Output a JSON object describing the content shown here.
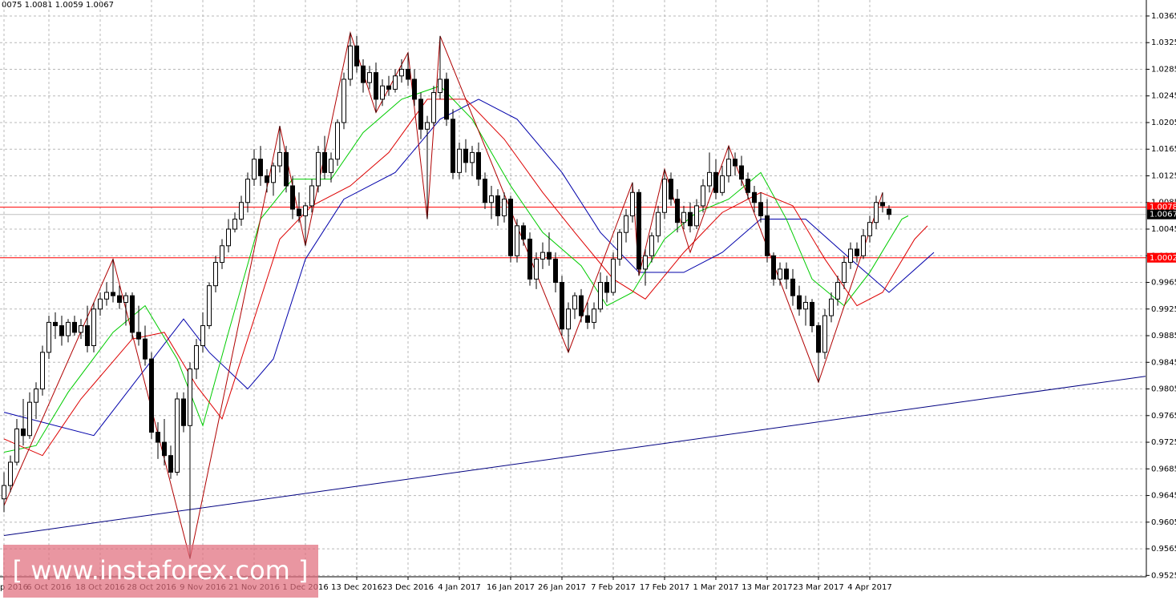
{
  "chart_data": {
    "type": "candlestick",
    "header_text": "0075 1.0081 1.0059 1.0067",
    "watermark": "[ www.instaforex.com ]",
    "ylim": [
      0.9523,
      1.0389
    ],
    "yticks": [
      1.0365,
      1.0325,
      1.0285,
      1.0245,
      1.0205,
      1.0165,
      1.0125,
      1.0085,
      1.0045,
      1.0005,
      0.9965,
      0.9925,
      0.9885,
      0.9845,
      0.9805,
      0.9765,
      0.9725,
      0.9685,
      0.9645,
      0.9605,
      0.9565,
      0.9525
    ],
    "grid": true,
    "up_color": "#ffffff",
    "down_color": "#000000",
    "categories": [
      "p 2016",
      null,
      null,
      null,
      null,
      null,
      null,
      "6 Oct 2016",
      null,
      null,
      null,
      null,
      null,
      null,
      null,
      "18 Oct 2016",
      null,
      null,
      null,
      null,
      null,
      null,
      null,
      "28 Oct 2016",
      null,
      null,
      null,
      null,
      null,
      null,
      null,
      "9 Nov 2016",
      null,
      null,
      null,
      null,
      null,
      null,
      null,
      "21 Nov 2016",
      null,
      null,
      null,
      null,
      null,
      null,
      null,
      "1 Dec 2016",
      null,
      null,
      null,
      null,
      null,
      null,
      null,
      "13 Dec 2016",
      null,
      null,
      null,
      null,
      null,
      null,
      null,
      "23 Dec 2016",
      null,
      null,
      null,
      null,
      null,
      null,
      null,
      "4 Jan 2017",
      null,
      null,
      null,
      null,
      null,
      null,
      null,
      "16 Jan 2017",
      null,
      null,
      null,
      null,
      null,
      null,
      null,
      "26 Jan 2017",
      null,
      null,
      null,
      null,
      null,
      null,
      null,
      "7 Feb 2017",
      null,
      null,
      null,
      null,
      null,
      null,
      null,
      "17 Feb 2017",
      null,
      null,
      null,
      null,
      null,
      null,
      null,
      "1 Mar 2017",
      null,
      null,
      null,
      null,
      null,
      null,
      null,
      "13 Mar 2017",
      null,
      null,
      null,
      null,
      null,
      null,
      null,
      "23 Mar 2017",
      null,
      null,
      null,
      null,
      null,
      null,
      null,
      "4 Apr 2017",
      null,
      null,
      null
    ],
    "ohlc": [
      [
        0.964,
        0.968,
        0.962,
        0.966
      ],
      [
        0.966,
        0.9705,
        0.965,
        0.9695
      ],
      [
        0.9695,
        0.976,
        0.969,
        0.9745
      ],
      [
        0.9745,
        0.979,
        0.972,
        0.9735
      ],
      [
        0.9735,
        0.98,
        0.973,
        0.9785
      ],
      [
        0.9785,
        0.9815,
        0.976,
        0.9805
      ],
      [
        0.9805,
        0.987,
        0.9795,
        0.986
      ],
      [
        0.986,
        0.9915,
        0.985,
        0.9905
      ],
      [
        0.9905,
        0.992,
        0.988,
        0.99
      ],
      [
        0.99,
        0.9915,
        0.987,
        0.9885
      ],
      [
        0.9885,
        0.991,
        0.9875,
        0.9905
      ],
      [
        0.9905,
        0.9915,
        0.9885,
        0.989
      ],
      [
        0.989,
        0.991,
        0.988,
        0.99
      ],
      [
        0.99,
        0.993,
        0.986,
        0.987
      ],
      [
        0.987,
        0.9935,
        0.986,
        0.9925
      ],
      [
        0.9925,
        0.995,
        0.9915,
        0.994
      ],
      [
        0.994,
        0.9965,
        0.993,
        0.995
      ],
      [
        0.995,
        1.0,
        0.9935,
        0.9945
      ],
      [
        0.9945,
        0.996,
        0.9925,
        0.9935
      ],
      [
        0.9935,
        0.995,
        0.99,
        0.9945
      ],
      [
        0.9945,
        0.995,
        0.988,
        0.989
      ],
      [
        0.989,
        0.993,
        0.987,
        0.988
      ],
      [
        0.988,
        0.99,
        0.984,
        0.985
      ],
      [
        0.985,
        0.986,
        0.973,
        0.974
      ],
      [
        0.974,
        0.9755,
        0.97,
        0.9725
      ],
      [
        0.9725,
        0.976,
        0.969,
        0.9705
      ],
      [
        0.9705,
        0.972,
        0.967,
        0.968
      ],
      [
        0.968,
        0.98,
        0.9675,
        0.979
      ],
      [
        0.979,
        0.98,
        0.974,
        0.975
      ],
      [
        0.975,
        0.9845,
        0.955,
        0.9835
      ],
      [
        0.9835,
        0.988,
        0.982,
        0.987
      ],
      [
        0.987,
        0.992,
        0.986,
        0.99
      ],
      [
        0.99,
        0.9965,
        0.9895,
        0.996
      ],
      [
        0.996,
        1.0005,
        0.995,
        0.9995
      ],
      [
        0.9995,
        1.003,
        0.9985,
        1.002
      ],
      [
        1.002,
        1.006,
        1.001,
        1.0045
      ],
      [
        1.0045,
        1.007,
        1.004,
        1.006
      ],
      [
        1.006,
        1.0095,
        1.005,
        1.0085
      ],
      [
        1.0085,
        1.013,
        1.007,
        1.012
      ],
      [
        1.012,
        1.0165,
        1.011,
        1.015
      ],
      [
        1.015,
        1.017,
        1.011,
        1.0125
      ],
      [
        1.0125,
        1.0135,
        1.01,
        1.0115
      ],
      [
        1.0115,
        1.0145,
        1.0095,
        1.014
      ],
      [
        1.014,
        1.02,
        1.013,
        1.016
      ],
      [
        1.016,
        1.017,
        1.01,
        1.011
      ],
      [
        1.011,
        1.0125,
        1.006,
        1.0075
      ],
      [
        1.0075,
        1.01,
        1.0055,
        1.0065
      ],
      [
        1.0065,
        1.0085,
        1.002,
        1.008
      ],
      [
        1.008,
        1.012,
        1.007,
        1.011
      ],
      [
        1.011,
        1.017,
        1.01,
        1.016
      ],
      [
        1.016,
        1.0185,
        1.012,
        1.013
      ],
      [
        1.013,
        1.016,
        1.0115,
        1.015
      ],
      [
        1.015,
        1.021,
        1.014,
        1.0205
      ],
      [
        1.0205,
        1.028,
        1.0195,
        1.027
      ],
      [
        1.027,
        1.034,
        1.026,
        1.032
      ],
      [
        1.032,
        1.0335,
        1.028,
        1.029
      ],
      [
        1.029,
        1.03,
        1.025,
        1.0265
      ],
      [
        1.0265,
        1.029,
        1.0255,
        1.028
      ],
      [
        1.028,
        1.0295,
        1.022,
        1.024
      ],
      [
        1.024,
        1.027,
        1.023,
        1.026
      ],
      [
        1.026,
        1.0275,
        1.0245,
        1.0255
      ],
      [
        1.0255,
        1.0285,
        1.025,
        1.0275
      ],
      [
        1.0275,
        1.03,
        1.0265,
        1.0285
      ],
      [
        1.0285,
        1.031,
        1.026,
        1.027
      ],
      [
        1.027,
        1.0285,
        1.023,
        1.024
      ],
      [
        1.024,
        1.025,
        1.018,
        1.0195
      ],
      [
        1.0195,
        1.0215,
        1.006,
        1.0205
      ],
      [
        1.0205,
        1.026,
        1.02,
        1.025
      ],
      [
        1.025,
        1.0335,
        1.024,
        1.027
      ],
      [
        1.027,
        1.028,
        1.02,
        1.021
      ],
      [
        1.021,
        1.0225,
        1.012,
        1.013
      ],
      [
        1.013,
        1.0175,
        1.012,
        1.0165
      ],
      [
        1.0165,
        1.018,
        1.013,
        1.0145
      ],
      [
        1.0145,
        1.017,
        1.0125,
        1.016
      ],
      [
        1.016,
        1.0175,
        1.011,
        1.012
      ],
      [
        1.012,
        1.013,
        1.0075,
        1.0085
      ],
      [
        1.0085,
        1.011,
        1.006,
        1.0095
      ],
      [
        1.0095,
        1.0105,
        1.005,
        1.0065
      ],
      [
        1.0065,
        1.01,
        1.0055,
        1.009
      ],
      [
        1.009,
        1.0095,
        0.9995,
        1.0005
      ],
      [
        1.0005,
        1.006,
        0.9995,
        1.005
      ],
      [
        1.005,
        1.0055,
        1.002,
        1.003
      ],
      [
        1.003,
        1.004,
        0.996,
        0.997
      ],
      [
        0.997,
        1.001,
        0.9955,
        1.0
      ],
      [
        1.0,
        1.0025,
        0.9985,
        1.001
      ],
      [
        1.001,
        1.004,
        0.999,
        1.0
      ],
      [
        1.0,
        1.001,
        0.995,
        0.9965
      ],
      [
        0.9965,
        0.9975,
        0.9885,
        0.9895
      ],
      [
        0.9895,
        0.9935,
        0.986,
        0.9925
      ],
      [
        0.9925,
        0.995,
        0.991,
        0.9945
      ],
      [
        0.9945,
        0.9955,
        0.9905,
        0.9915
      ],
      [
        0.9915,
        0.9935,
        0.9895,
        0.9905
      ],
      [
        0.9905,
        0.9935,
        0.9895,
        0.9925
      ],
      [
        0.9925,
        0.998,
        0.992,
        0.9965
      ],
      [
        0.9965,
        0.9975,
        0.9935,
        0.995
      ],
      [
        0.995,
        1.001,
        0.9945,
        1.0
      ],
      [
        1.0,
        1.0045,
        0.999,
        1.004
      ],
      [
        1.004,
        1.0075,
        1.0025,
        1.0065
      ],
      [
        1.0065,
        1.0115,
        1.0055,
        1.01
      ],
      [
        1.01,
        1.0105,
        0.9975,
        0.9985
      ],
      [
        0.9985,
        1.0015,
        0.996,
        1.0005
      ],
      [
        1.0005,
        1.004,
        0.9995,
        1.0035
      ],
      [
        1.0035,
        1.008,
        1.0025,
        1.007
      ],
      [
        1.007,
        1.0135,
        1.006,
        1.012
      ],
      [
        1.012,
        1.013,
        1.008,
        1.009
      ],
      [
        1.009,
        1.0105,
        1.004,
        1.0055
      ],
      [
        1.0055,
        1.008,
        1.0045,
        1.007
      ],
      [
        1.007,
        1.0085,
        1.004,
        1.005
      ],
      [
        1.005,
        1.009,
        1.0045,
        1.008
      ],
      [
        1.008,
        1.012,
        1.007,
        1.011
      ],
      [
        1.011,
        1.016,
        1.01,
        1.013
      ],
      [
        1.013,
        1.015,
        1.009,
        1.01
      ],
      [
        1.01,
        1.014,
        1.0095,
        1.0125
      ],
      [
        1.0125,
        1.017,
        1.0115,
        1.015
      ],
      [
        1.015,
        1.016,
        1.0125,
        1.014
      ],
      [
        1.014,
        1.0155,
        1.011,
        1.012
      ],
      [
        1.012,
        1.013,
        1.009,
        1.01
      ],
      [
        1.01,
        1.011,
        1.007,
        1.0085
      ],
      [
        1.0085,
        1.01,
        1.0055,
        1.0065
      ],
      [
        1.0065,
        1.009,
        0.9995,
        1.0005
      ],
      [
        1.0005,
        1.001,
        0.996,
        0.997
      ],
      [
        0.997,
        0.9995,
        0.996,
        0.9985
      ],
      [
        0.9985,
        0.9995,
        0.9955,
        0.997
      ],
      [
        0.997,
        0.9985,
        0.993,
        0.9945
      ],
      [
        0.9945,
        0.996,
        0.9915,
        0.9925
      ],
      [
        0.9925,
        0.9945,
        0.99,
        0.9935
      ],
      [
        0.9935,
        0.994,
        0.989,
        0.99
      ],
      [
        0.99,
        0.9905,
        0.9815,
        0.986
      ],
      [
        0.986,
        0.9925,
        0.985,
        0.9915
      ],
      [
        0.9915,
        0.995,
        0.9905,
        0.994
      ],
      [
        0.994,
        0.9975,
        0.993,
        0.9965
      ],
      [
        0.9965,
        1.0005,
        0.9955,
        0.9995
      ],
      [
        0.9995,
        1.0025,
        0.9985,
        1.0015
      ],
      [
        1.0015,
        1.0025,
        0.9995,
        1.0005
      ],
      [
        1.0005,
        1.0045,
        1.0,
        1.0035
      ],
      [
        1.0035,
        1.0065,
        1.0025,
        1.0055
      ],
      [
        1.0055,
        1.0095,
        1.0045,
        1.0085
      ],
      [
        1.0085,
        1.01,
        1.007,
        1.008
      ],
      [
        1.0075,
        1.0081,
        1.0059,
        1.0067
      ]
    ],
    "lines": [
      {
        "color": "#0000aa",
        "x": [
          0,
          14,
          28,
          32,
          38,
          42,
          47,
          53,
          61,
          68,
          74,
          80,
          87,
          93,
          99,
          106,
          112,
          118,
          125,
          132,
          138,
          145
        ],
        "values": [
          0.977,
          0.9735,
          0.991,
          0.986,
          0.9805,
          0.985,
          1.0,
          1.009,
          1.013,
          1.021,
          1.024,
          1.021,
          1.013,
          1.004,
          0.998,
          0.998,
          1.001,
          1.006,
          1.006,
          1.0,
          0.995,
          1.001
        ]
      },
      {
        "color": "#00cc00",
        "x": [
          0,
          5,
          10,
          17,
          22,
          27,
          31,
          35,
          40,
          45,
          51,
          56,
          62,
          68,
          73,
          79,
          84,
          90,
          94,
          98,
          103,
          108,
          113,
          118,
          122,
          126,
          131,
          135,
          140,
          141
        ],
        "values": [
          0.971,
          0.972,
          0.98,
          0.989,
          0.993,
          0.985,
          0.975,
          0.989,
          1.006,
          1.012,
          1.012,
          1.019,
          1.024,
          1.026,
          1.021,
          1.011,
          1.004,
          0.999,
          0.993,
          0.995,
          1.003,
          1.007,
          1.009,
          1.013,
          1.006,
          0.997,
          0.993,
          0.998,
          1.006,
          1.0065
        ]
      },
      {
        "color": "#dd0000",
        "x": [
          0,
          6,
          12,
          20,
          25,
          30,
          34,
          38,
          43,
          48,
          54,
          60,
          66,
          72,
          78,
          84,
          89,
          95,
          100,
          106,
          112,
          118,
          123,
          128,
          133,
          137,
          142,
          144
        ],
        "values": [
          0.973,
          0.9705,
          0.979,
          0.988,
          0.989,
          0.981,
          0.976,
          0.988,
          1.003,
          1.008,
          1.011,
          1.016,
          1.024,
          1.024,
          1.018,
          1.01,
          1.004,
          0.997,
          0.994,
          1.001,
          1.007,
          1.01,
          1.008,
          1.0,
          0.993,
          0.995,
          1.003,
          1.005
        ]
      },
      {
        "color": "#b00000",
        "x": [
          0,
          17,
          29,
          43,
          47,
          54,
          58,
          63,
          66,
          68,
          88,
          98,
          99,
          103,
          107,
          113,
          127,
          137
        ],
        "values": [
          0.963,
          1.0,
          0.955,
          1.02,
          1.002,
          1.034,
          1.022,
          1.031,
          1.006,
          1.0335,
          0.986,
          1.0115,
          0.9975,
          1.0135,
          1.001,
          1.017,
          0.9815,
          1.01
        ]
      },
      {
        "color": "#000080",
        "x": [
          0,
          178
        ],
        "values": [
          0.9585,
          0.9824
        ]
      }
    ],
    "levels": [
      {
        "value": 1.0078,
        "color": "#ff0000"
      },
      {
        "value": 1.0002,
        "color": "#ff0000"
      },
      {
        "value": 1.0067,
        "color": "#c0c0c0"
      }
    ]
  }
}
